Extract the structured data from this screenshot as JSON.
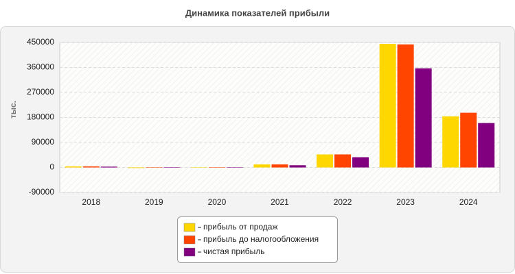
{
  "chart_data": {
    "type": "bar",
    "title": "Динамика показателей прибыли",
    "ylabel": "тыс.",
    "categories": [
      "2018",
      "2019",
      "2020",
      "2021",
      "2022",
      "2023",
      "2024"
    ],
    "series": [
      {
        "name": "прибыль от продаж",
        "color": "#ffd700",
        "values": [
          4000,
          -2000,
          1000,
          11000,
          47000,
          445000,
          184000
        ]
      },
      {
        "name": "прибыль до налогообложения",
        "color": "#ff4500",
        "values": [
          4000,
          -1000,
          1000,
          11000,
          47000,
          443000,
          197000
        ]
      },
      {
        "name": "чистая прибыль",
        "color": "#800080",
        "values": [
          3000,
          -1000,
          500,
          8000,
          37000,
          357000,
          160000
        ]
      }
    ],
    "ylim": [
      -90000,
      450000
    ],
    "yticks": [
      -90000,
      0,
      90000,
      180000,
      270000,
      360000,
      450000
    ],
    "grid": true
  }
}
